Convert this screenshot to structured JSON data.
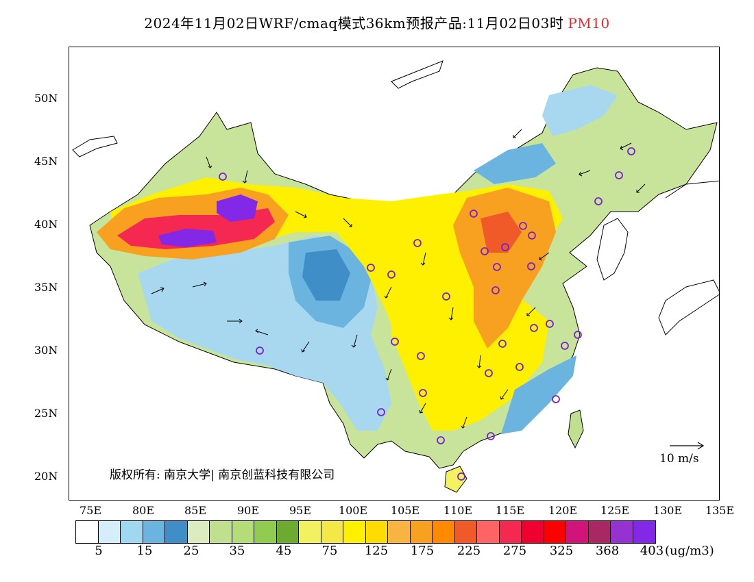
{
  "title": {
    "text": "2024年11月02日WRF/cmaq模式36km预报产品:11月02日03时",
    "highlight": "PM10"
  },
  "axes": {
    "lat_labels": [
      "50N",
      "45N",
      "40N",
      "35N",
      "30N",
      "25N",
      "20N"
    ],
    "lon_labels": [
      "75E",
      "80E",
      "85E",
      "90E",
      "95E",
      "100E",
      "105E",
      "110E",
      "115E",
      "120E",
      "125E",
      "130E",
      "135E"
    ]
  },
  "copyright": "版权所有: 南京大学| 南京创蓝科技有限公司",
  "wind_scale": "10 m/s",
  "legend": {
    "colors": [
      "#ffffff",
      "#d6eefa",
      "#a0d8f2",
      "#6bb4e0",
      "#3f8ec8",
      "#dcecc0",
      "#c0e090",
      "#b4dc78",
      "#90cc50",
      "#6caa30",
      "#f2f260",
      "#f4e848",
      "#fff000",
      "#ffdc00",
      "#f8b440",
      "#f8a020",
      "#ff8a00",
      "#f05a28",
      "#ff6464",
      "#f42850",
      "#f00030",
      "#ff0000",
      "#d0147a",
      "#a82864",
      "#9632d0",
      "#8228e6"
    ],
    "labels": [
      "5",
      "15",
      "25",
      "35",
      "45",
      "75",
      "125",
      "175",
      "225",
      "275",
      "325",
      "368",
      "403"
    ],
    "unit": "(ug/m3)"
  }
}
